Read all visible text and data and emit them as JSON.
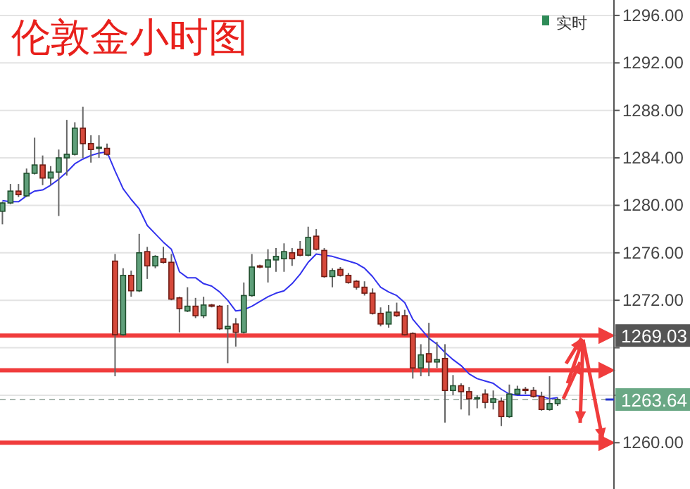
{
  "chart_data": {
    "type": "candlestick",
    "title": "伦敦金小时图",
    "annotations": [
      "实时"
    ],
    "categories": [
      null,
      null,
      null,
      null,
      null,
      null,
      null,
      null,
      null,
      null,
      null,
      null,
      null,
      null,
      null,
      null,
      null,
      null,
      null,
      null,
      null,
      null,
      null,
      null,
      null,
      null,
      null,
      null,
      null,
      null,
      null,
      null,
      null,
      null,
      null,
      null,
      null,
      null,
      null,
      null,
      null,
      null,
      null,
      null,
      null,
      null,
      null,
      null,
      null,
      null,
      null,
      null,
      null,
      null,
      null,
      null,
      null,
      null,
      null,
      null,
      null,
      null,
      null,
      null,
      null,
      null,
      null,
      null,
      null,
      null
    ],
    "ohlc": [
      [
        1279.5,
        1280.3,
        1278.4,
        1280.2
      ],
      [
        1280.2,
        1281.8,
        1280.1,
        1281.2
      ],
      [
        1281.2,
        1281.8,
        1280.7,
        1280.9
      ],
      [
        1280.8,
        1283.1,
        1280.7,
        1282.7
      ],
      [
        1282.7,
        1285.7,
        1282.6,
        1283.4
      ],
      [
        1283.4,
        1284.2,
        1281.7,
        1282.3
      ],
      [
        1282.3,
        1283.3,
        1281.7,
        1282.8
      ],
      [
        1282.8,
        1284.7,
        1279.1,
        1284.0
      ],
      [
        1284.0,
        1287.2,
        1282.5,
        1284.3
      ],
      [
        1284.3,
        1287.0,
        1284.2,
        1286.5
      ],
      [
        1286.5,
        1288.3,
        1284.0,
        1285.2
      ],
      [
        1285.2,
        1285.9,
        1283.6,
        1284.7
      ],
      [
        1284.8,
        1285.9,
        1284.0,
        1284.9
      ],
      [
        1284.8,
        1285.2,
        1284.2,
        1284.3
      ],
      [
        1275.3,
        1275.9,
        1265.6,
        1269.1
      ],
      [
        1269.1,
        1274.7,
        1269.0,
        1274.1
      ],
      [
        1274.1,
        1274.5,
        1272.3,
        1272.8
      ],
      [
        1272.8,
        1277.6,
        1272.7,
        1276.0
      ],
      [
        1276.1,
        1276.5,
        1273.8,
        1274.9
      ],
      [
        1274.9,
        1275.8,
        1274.7,
        1275.7
      ],
      [
        1275.5,
        1276.5,
        1275.1,
        1275.2
      ],
      [
        1275.2,
        1275.9,
        1272.0,
        1272.1
      ],
      [
        1272.2,
        1272.3,
        1269.3,
        1271.3
      ],
      [
        1271.1,
        1273.1,
        1271.0,
        1271.5
      ],
      [
        1271.5,
        1272.2,
        1270.5,
        1270.7
      ],
      [
        1270.7,
        1272.3,
        1270.5,
        1271.6
      ],
      [
        1271.6,
        1271.7,
        1271.4,
        1271.5
      ],
      [
        1271.5,
        1271.6,
        1269.5,
        1269.6
      ],
      [
        1269.6,
        1271.6,
        1266.7,
        1269.8
      ],
      [
        1270.0,
        1270.5,
        1268.1,
        1269.3
      ],
      [
        1269.3,
        1273.5,
        1269.2,
        1272.4
      ],
      [
        1272.4,
        1275.9,
        1272.3,
        1274.8
      ],
      [
        1274.9,
        1275.0,
        1274.7,
        1274.8
      ],
      [
        1274.8,
        1276.3,
        1273.5,
        1275.4
      ],
      [
        1275.4,
        1276.4,
        1274.4,
        1275.7
      ],
      [
        1275.5,
        1276.8,
        1274.4,
        1276.1
      ],
      [
        1276.0,
        1276.4,
        1274.9,
        1275.5
      ],
      [
        1276.3,
        1277.0,
        1275.7,
        1275.8
      ],
      [
        1275.8,
        1278.2,
        1275.7,
        1277.3
      ],
      [
        1277.4,
        1278.0,
        1276.2,
        1276.3
      ],
      [
        1276.2,
        1276.4,
        1273.9,
        1274.0
      ],
      [
        1274.0,
        1274.7,
        1273.1,
        1274.5
      ],
      [
        1274.6,
        1274.8,
        1274.0,
        1274.1
      ],
      [
        1274.1,
        1274.3,
        1273.4,
        1273.5
      ],
      [
        1273.6,
        1273.7,
        1272.9,
        1273.1
      ],
      [
        1273.1,
        1273.6,
        1272.4,
        1272.6
      ],
      [
        1272.6,
        1273.0,
        1270.8,
        1270.9
      ],
      [
        1270.9,
        1271.4,
        1269.8,
        1270.0
      ],
      [
        1270.0,
        1271.6,
        1269.7,
        1271.0
      ],
      [
        1271.0,
        1271.8,
        1270.6,
        1270.7
      ],
      [
        1270.7,
        1271.2,
        1269.0,
        1269.1
      ],
      [
        1269.2,
        1269.3,
        1265.4,
        1266.3
      ],
      [
        1266.3,
        1268.3,
        1265.6,
        1267.4
      ],
      [
        1267.5,
        1270.1,
        1265.6,
        1266.8
      ],
      [
        1266.8,
        1268.5,
        1266.3,
        1267.0
      ],
      [
        1267.1,
        1268.3,
        1261.7,
        1264.4
      ],
      [
        1264.4,
        1265.7,
        1264.0,
        1264.8
      ],
      [
        1264.8,
        1265.0,
        1262.8,
        1264.3
      ],
      [
        1264.3,
        1264.7,
        1262.3,
        1263.7
      ],
      [
        1263.7,
        1264.0,
        1262.9,
        1263.8
      ],
      [
        1264.1,
        1264.5,
        1262.9,
        1263.4
      ],
      [
        1263.4,
        1264.4,
        1262.8,
        1263.7
      ],
      [
        1263.5,
        1263.8,
        1261.4,
        1262.2
      ],
      [
        1262.2,
        1264.9,
        1262.1,
        1264.1
      ],
      [
        1264.1,
        1264.8,
        1264.0,
        1264.5
      ],
      [
        1264.5,
        1264.7,
        1264.1,
        1264.4
      ],
      [
        1264.4,
        1264.7,
        1263.8,
        1263.9
      ],
      [
        1263.9,
        1264.3,
        1262.7,
        1262.8
      ],
      [
        1262.8,
        1265.6,
        1262.7,
        1263.3
      ],
      [
        1263.3,
        1263.8,
        1263.1,
        1263.64
      ]
    ],
    "series": [
      {
        "type": "line",
        "color": "#3333ee",
        "values": [
          1280.4,
          1280.3,
          1280.3,
          1280.8,
          1281.2,
          1281.3,
          1281.7,
          1282.2,
          1282.8,
          1283.5,
          1283.9,
          1284.2,
          1284.4,
          1284.5,
          1282.9,
          1281.4,
          1280.5,
          1279.7,
          1278.3,
          1277.6,
          1276.9,
          1276.3,
          1274.4,
          1273.9,
          1273.9,
          1273.4,
          1273.2,
          1272.7,
          1272.0,
          1271.1,
          1271.2,
          1271.5,
          1271.9,
          1272.3,
          1272.6,
          1272.8,
          1273.4,
          1274.2,
          1275.2,
          1275.9,
          1275.8,
          1275.7,
          1275.5,
          1275.3,
          1275.1,
          1274.7,
          1274.0,
          1273.1,
          1272.7,
          1272.4,
          1271.8,
          1270.4,
          1269.6,
          1268.8,
          1268.3,
          1267.6,
          1267.0,
          1266.5,
          1265.8,
          1265.4,
          1265.2,
          1265.0,
          1264.5,
          1264.1,
          1264.0,
          1264.0,
          1264.0,
          1263.9,
          1263.7,
          1263.8
        ]
      }
    ],
    "ylim": [
      1256.1,
      1297.3
    ],
    "yticks": [
      {
        "value": 1260,
        "label": "1260.00"
      },
      {
        "value": 1264,
        "label": null
      },
      {
        "value": 1268,
        "label": null
      },
      {
        "value": 1272,
        "label": "1272.00"
      },
      {
        "value": 1276,
        "label": "1276.00"
      },
      {
        "value": 1280,
        "label": "1280.00"
      },
      {
        "value": 1284,
        "label": "1284.00"
      },
      {
        "value": 1288,
        "label": "1288.00"
      },
      {
        "value": 1292,
        "label": "1292.00"
      },
      {
        "value": 1296,
        "label": "1296.00"
      }
    ],
    "grid": "y",
    "ref_lines": [
      {
        "axis": "y",
        "value": 1269.03,
        "label": "1269.03",
        "color": "#f03c3c"
      },
      {
        "axis": "y",
        "value": 1266.1,
        "color": "#f03c3c"
      },
      {
        "axis": "y",
        "value": 1260,
        "color": "#f03c3c"
      },
      {
        "axis": "y",
        "value": 1263.64,
        "label": "1263.64",
        "color": "#aab8b0",
        "line_style": "dashed"
      }
    ]
  }
}
